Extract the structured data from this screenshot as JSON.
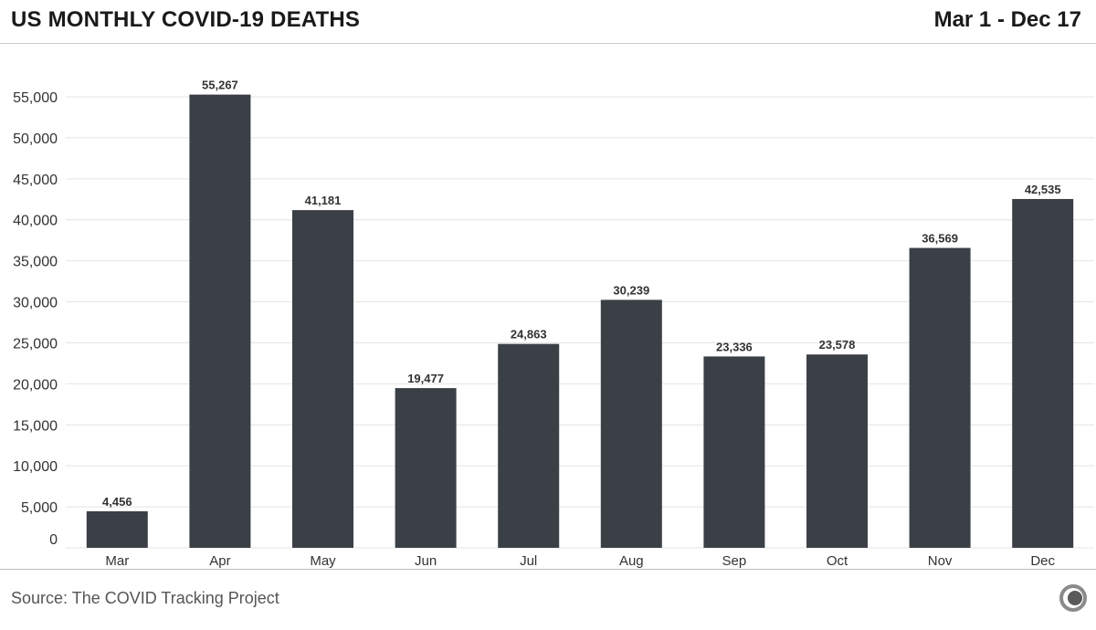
{
  "header": {
    "title": "US MONTHLY COVID-19 DEATHS",
    "date_range": "Mar 1 - Dec 17"
  },
  "footer": {
    "source": "Source: The COVID Tracking Project",
    "logo_icon": "covid-tracking-project-logo-icon"
  },
  "colors": {
    "bar": "#3b4046",
    "grid": "#e4e4e4",
    "tick_text": "#333333",
    "label_text": "#333333"
  },
  "chart_data": {
    "type": "bar",
    "categories": [
      "Mar",
      "Apr",
      "May",
      "Jun",
      "Jul",
      "Aug",
      "Sep",
      "Oct",
      "Nov",
      "Dec"
    ],
    "values": [
      4456,
      55267,
      41181,
      19477,
      24863,
      30239,
      23336,
      23578,
      36569,
      42535
    ],
    "value_labels": [
      "4,456",
      "55,267",
      "41,181",
      "19,477",
      "24,863",
      "30,239",
      "23,336",
      "23,578",
      "36,569",
      "42,535"
    ],
    "yticks": [
      0,
      5000,
      10000,
      15000,
      20000,
      25000,
      30000,
      35000,
      40000,
      45000,
      50000,
      55000
    ],
    "ytick_labels": [
      "0",
      "5,000",
      "10,000",
      "15,000",
      "20,000",
      "25,000",
      "30,000",
      "35,000",
      "40,000",
      "45,000",
      "50,000",
      "55,000"
    ],
    "ylim": [
      0,
      55000
    ],
    "grid": true,
    "legend": "none"
  }
}
